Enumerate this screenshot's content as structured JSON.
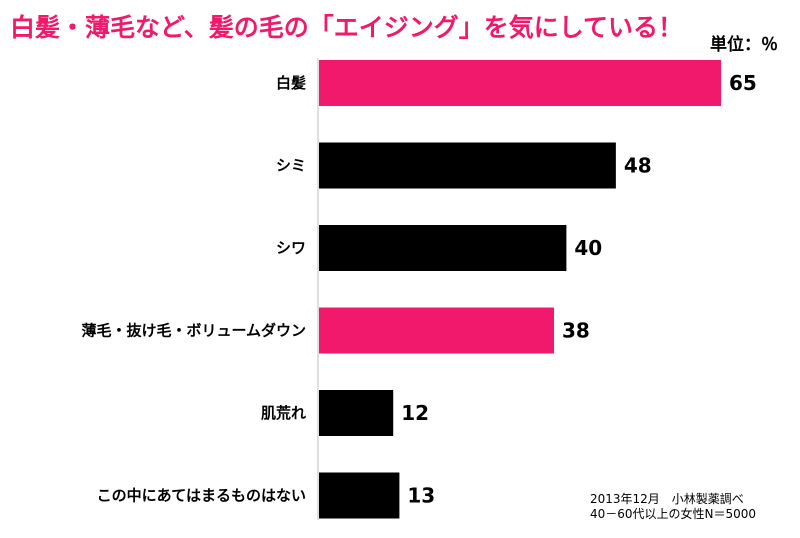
{
  "unit_label": "単位：％",
  "source": {
    "line1": "2013年12月　小林製薬調べ",
    "line2": "40－60代以上の女性N＝5000"
  },
  "colors": {
    "highlight": "#f0196b",
    "normal": "#000000"
  },
  "chart_data": {
    "type": "bar",
    "orientation": "horizontal",
    "title": "白髪・薄毛など、髪の毛の「エイジング」を気にしている！",
    "categories": [
      "白髪",
      "シミ",
      "シワ",
      "薄毛・抜け毛・ボリュームダウン",
      "肌荒れ",
      "この中にあてはまるものはない"
    ],
    "values": [
      65,
      48,
      40,
      38,
      12,
      13
    ],
    "highlighted": [
      true,
      false,
      false,
      true,
      false,
      false
    ],
    "xlim": [
      0,
      65
    ],
    "grid": false,
    "legend": "none"
  }
}
